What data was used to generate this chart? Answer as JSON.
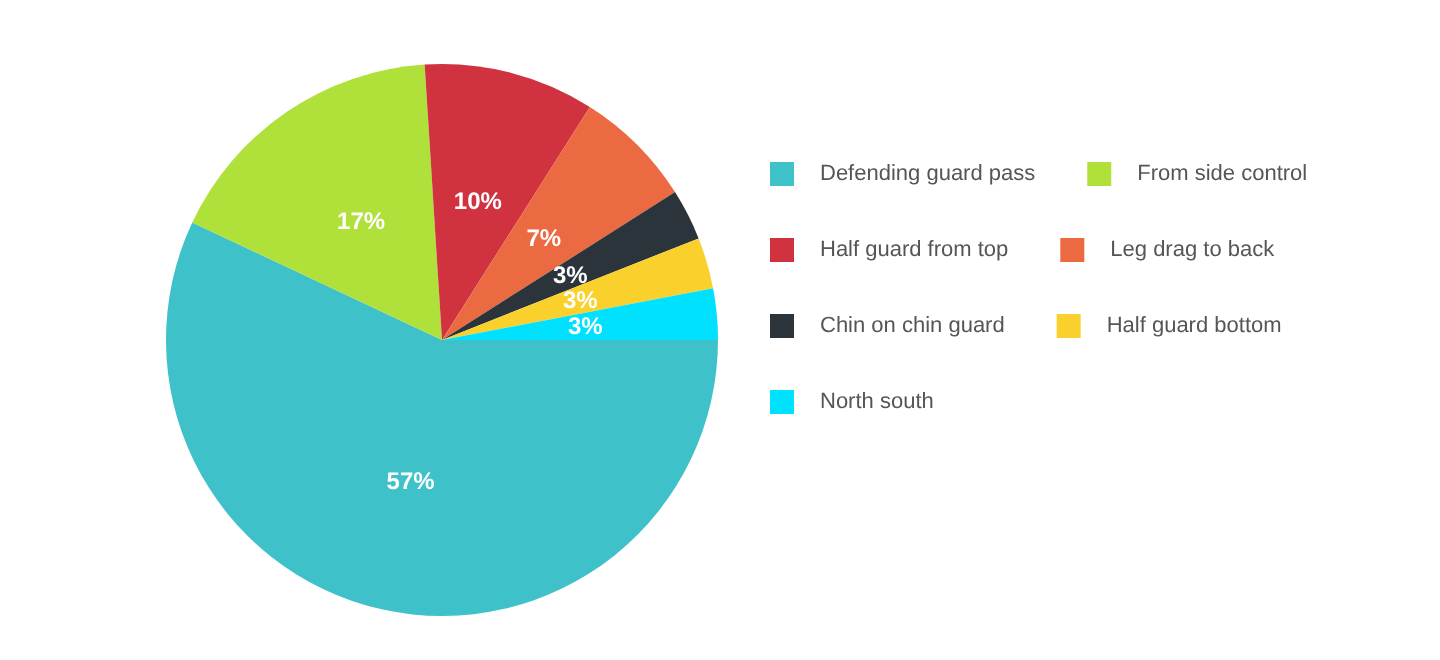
{
  "chart_data": {
    "type": "pie",
    "categories": [
      "Defending guard pass",
      "From side control",
      "Half guard from top",
      "Leg drag to back",
      "Chin on chin guard",
      "Half guard bottom",
      "North south"
    ],
    "values": [
      57,
      17,
      10,
      7,
      3,
      3,
      3
    ],
    "value_labels": [
      "57%",
      "17%",
      "10%",
      "7%",
      "3%",
      "3%",
      "3%"
    ],
    "colors": [
      "#3fc1c9",
      "#b0e03a",
      "#d0323f",
      "#ec6a42",
      "#2b343b",
      "#fad12c",
      "#00e0ff"
    ],
    "legend": "right"
  }
}
